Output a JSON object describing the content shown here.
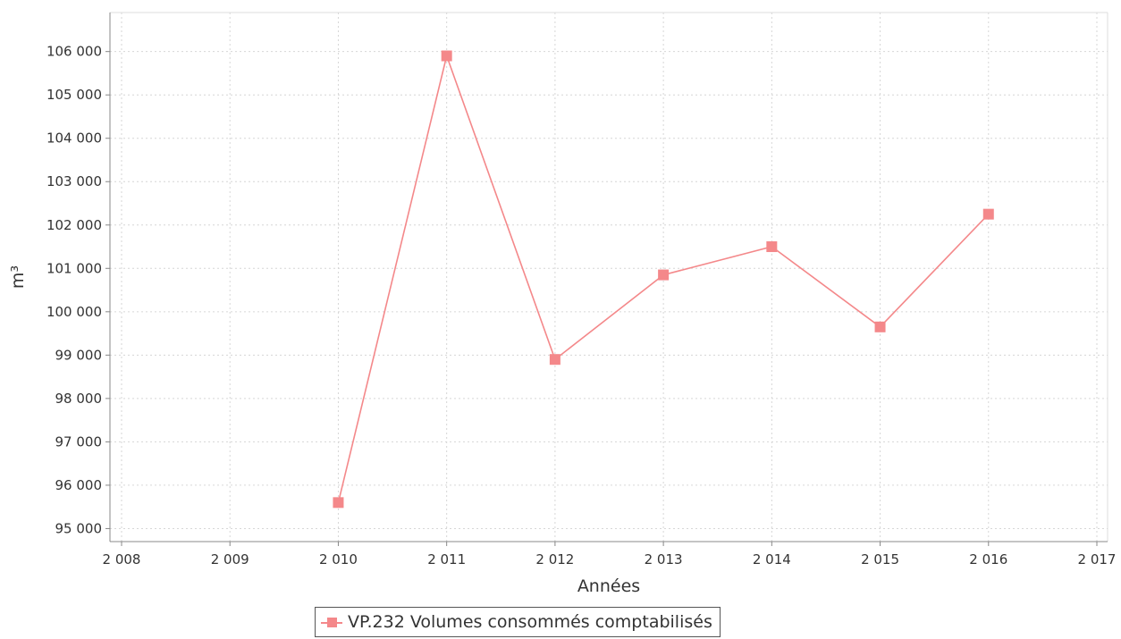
{
  "chart_data": {
    "type": "line",
    "title": "",
    "xlabel": "Années",
    "ylabel": "m³",
    "xlim": [
      2008,
      2017
    ],
    "ylim": [
      94700,
      106900
    ],
    "x_ticks": [
      2008,
      2009,
      2010,
      2011,
      2012,
      2013,
      2014,
      2015,
      2016,
      2017
    ],
    "x_tick_labels": [
      "2 008",
      "2 009",
      "2 010",
      "2 011",
      "2 012",
      "2 013",
      "2 014",
      "2 015",
      "2 016",
      "2 017"
    ],
    "y_ticks": [
      95000,
      96000,
      97000,
      98000,
      99000,
      100000,
      101000,
      102000,
      103000,
      104000,
      105000,
      106000
    ],
    "y_tick_labels": [
      "95 000",
      "96 000",
      "97 000",
      "98 000",
      "99 000",
      "100 000",
      "101 000",
      "102 000",
      "103 000",
      "104 000",
      "105 000",
      "106 000"
    ],
    "grid": true,
    "legend_position": "bottom-center",
    "series": [
      {
        "name": "VP.232 Volumes consommés comptabilisés",
        "color": "#f4888a",
        "marker": "square",
        "x": [
          2010,
          2011,
          2012,
          2013,
          2014,
          2015,
          2016
        ],
        "y": [
          95600,
          105900,
          98900,
          100850,
          101500,
          99650,
          102250
        ]
      }
    ]
  }
}
